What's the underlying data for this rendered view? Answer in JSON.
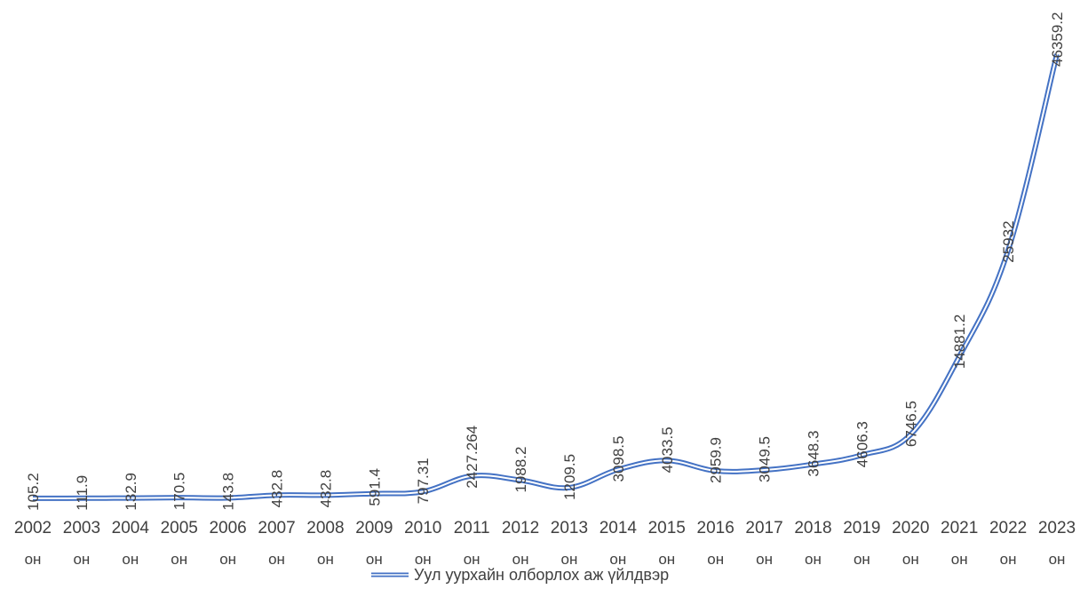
{
  "chart_data": {
    "type": "line",
    "categories": [
      {
        "year": "2002",
        "suffix": "он"
      },
      {
        "year": "2003",
        "suffix": "он"
      },
      {
        "year": "2004",
        "suffix": "он"
      },
      {
        "year": "2005",
        "suffix": "он"
      },
      {
        "year": "2006",
        "suffix": "он"
      },
      {
        "year": "2007",
        "suffix": "он"
      },
      {
        "year": "2008",
        "suffix": "он"
      },
      {
        "year": "2009",
        "suffix": "он"
      },
      {
        "year": "2010",
        "suffix": "он"
      },
      {
        "year": "2011",
        "suffix": "он"
      },
      {
        "year": "2012",
        "suffix": "он"
      },
      {
        "year": "2013",
        "suffix": "он"
      },
      {
        "year": "2014",
        "suffix": "он"
      },
      {
        "year": "2015",
        "suffix": "он"
      },
      {
        "year": "2016",
        "suffix": "он"
      },
      {
        "year": "2017",
        "suffix": "он"
      },
      {
        "year": "2018",
        "suffix": "он"
      },
      {
        "year": "2019",
        "suffix": "он"
      },
      {
        "year": "2020",
        "suffix": "он"
      },
      {
        "year": "2021",
        "suffix": "он"
      },
      {
        "year": "2022",
        "suffix": "он"
      },
      {
        "year": "2023",
        "suffix": "он"
      }
    ],
    "series": [
      {
        "name": "Уул уурхайн олборлох аж үйлдвэр",
        "color": "#4472C4",
        "values": [
          105.2,
          111.9,
          132.9,
          170.5,
          143.8,
          432.8,
          432.8,
          591.4,
          797.31,
          2427.264,
          1988.2,
          1209.5,
          3098.5,
          4033.5,
          2959.9,
          3049.5,
          3648.3,
          4606.3,
          6746.5,
          14881.2,
          25932,
          46359.2
        ],
        "labels": [
          "105.2",
          "111.9",
          "132.9",
          "170.5",
          "143.8",
          "432.8",
          "432.8",
          "591.4",
          "797.31",
          "2427.264",
          "1988.2",
          "1209.5",
          "3098.5",
          "4033.5",
          "2959.9",
          "3049.5",
          "3648.3",
          "4606.3",
          "6746.5",
          "14881.2",
          "25932",
          "46359.2"
        ]
      }
    ],
    "title": "",
    "xlabel": "",
    "ylabel": "",
    "ylim": [
      0,
      50000
    ],
    "y_axis_visible": false,
    "grid": false,
    "smooth": true,
    "line_style": "double",
    "legend_position": "bottom",
    "data_label_rotation": "vertical"
  }
}
